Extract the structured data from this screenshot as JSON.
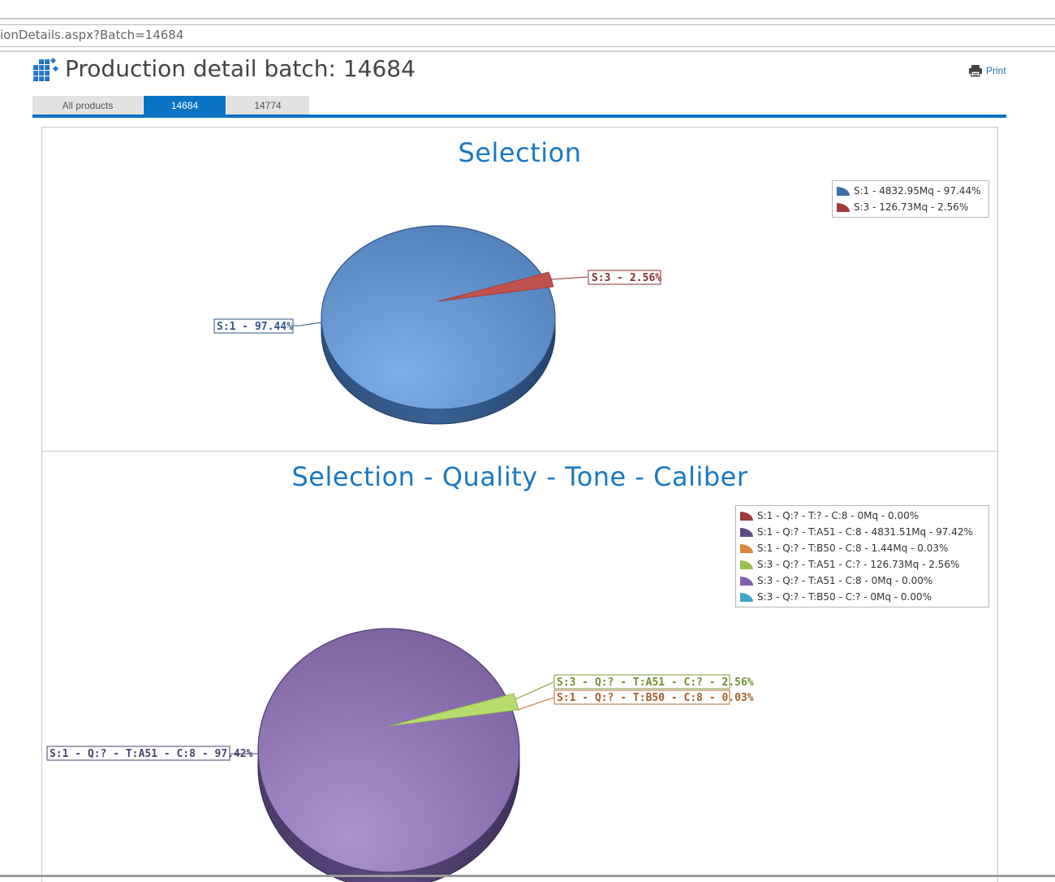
{
  "browser": {
    "address": "ionDetails.aspx?Batch=14684"
  },
  "header": {
    "title": "Production detail batch: 14684",
    "icon": "grid-cubes-icon",
    "print_label": "Print",
    "print_icon": "printer-icon"
  },
  "tabs": [
    {
      "label": "All products",
      "active": false
    },
    {
      "label": "14684",
      "active": true
    },
    {
      "label": "14774",
      "active": false
    }
  ],
  "colors": {
    "accent": "#0b73c3",
    "title": "#1a78c2"
  },
  "charts": {
    "selection": {
      "title": "Selection",
      "legend": [
        {
          "label": "S:1 - 4832.95Mq - 97.44%",
          "color": "#3f6ea8"
        },
        {
          "label": "S:3 - 126.73Mq - 2.56%",
          "color": "#a33b3b"
        }
      ],
      "labels": {
        "s1": "S:1 - 97.44%",
        "s3": "S:3 - 2.56%"
      }
    },
    "sqtc": {
      "title": "Selection - Quality - Tone - Caliber",
      "legend": [
        {
          "label": "S:1 - Q:? - T:? - C:8 - 0Mq - 0.00%",
          "color": "#9e3d3d"
        },
        {
          "label": "S:1 - Q:? - T:A51 - C:8 - 4831.51Mq - 97.42%",
          "color": "#5d4a86"
        },
        {
          "label": "S:1 - Q:? - T:B50 - C:8 - 1.44Mq - 0.03%",
          "color": "#d9843a"
        },
        {
          "label": "S:3 - Q:? - T:A51 - C:? - 126.73Mq - 2.56%",
          "color": "#9cc04f"
        },
        {
          "label": "S:3 - Q:? - T:A51 - C:8 - 0Mq - 0.00%",
          "color": "#7e5fb0"
        },
        {
          "label": "S:3 - Q:? - T:B50 - C:? - 0Mq - 0.00%",
          "color": "#3fa7c6"
        }
      ],
      "labels": {
        "main": "S:1 - Q:? - T:A51 - C:8 - 97.42%",
        "green": "S:3 - Q:? - T:A51 - C:? - 2.56%",
        "orange": "S:1 - Q:? - T:B50 - C:8 - 0.03%"
      }
    }
  },
  "chart_data": [
    {
      "type": "pie",
      "title": "Selection",
      "categories": [
        "S:1",
        "S:3"
      ],
      "values": [
        97.44,
        2.56
      ],
      "amounts_mq": [
        4832.95,
        126.73
      ],
      "legend": "top-right"
    },
    {
      "type": "pie",
      "title": "Selection - Quality - Tone - Caliber",
      "categories": [
        "S:1 - Q:? - T:? - C:8",
        "S:1 - Q:? - T:A51 - C:8",
        "S:1 - Q:? - T:B50 - C:8",
        "S:3 - Q:? - T:A51 - C:?",
        "S:3 - Q:? - T:A51 - C:8",
        "S:3 - Q:? - T:B50 - C:?"
      ],
      "values": [
        0.0,
        97.42,
        0.03,
        2.56,
        0.0,
        0.0
      ],
      "amounts_mq": [
        0,
        4831.51,
        1.44,
        126.73,
        0,
        0
      ],
      "legend": "top-right"
    }
  ]
}
